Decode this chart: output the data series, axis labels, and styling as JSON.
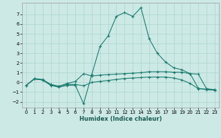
{
  "xlabel": "Humidex (Indice chaleur)",
  "bg_color": "#cce9e5",
  "grid_color": "#aad4cf",
  "line_color": "#1a7a6e",
  "xlim": [
    -0.5,
    23.5
  ],
  "ylim": [
    -2.6,
    8.2
  ],
  "xticks": [
    0,
    1,
    2,
    3,
    4,
    5,
    6,
    7,
    8,
    9,
    10,
    11,
    12,
    13,
    14,
    15,
    16,
    17,
    18,
    19,
    20,
    21,
    22,
    23
  ],
  "yticks": [
    -2,
    -1,
    0,
    1,
    2,
    3,
    4,
    5,
    6,
    7
  ],
  "series": [
    {
      "x": [
        0,
        1,
        2,
        3,
        4,
        5,
        6,
        7,
        8,
        9,
        10,
        11,
        12,
        13,
        14,
        15,
        16,
        17,
        18,
        19,
        20,
        21,
        22,
        23
      ],
      "y": [
        -0.3,
        0.4,
        0.3,
        -0.2,
        -0.4,
        -0.1,
        0.1,
        0.9,
        0.65,
        0.75,
        0.8,
        0.85,
        0.9,
        0.95,
        1.0,
        1.1,
        1.1,
        1.1,
        1.05,
        1.05,
        0.9,
        0.85,
        -0.65,
        -0.75
      ]
    },
    {
      "x": [
        0,
        1,
        2,
        3,
        4,
        5,
        6,
        7,
        8,
        9,
        10,
        11,
        12,
        13,
        14,
        15,
        16,
        17,
        18,
        19,
        20,
        21,
        22,
        23
      ],
      "y": [
        -0.3,
        0.35,
        0.25,
        -0.3,
        -0.4,
        -0.2,
        -0.2,
        -0.35,
        0.0,
        0.1,
        0.2,
        0.3,
        0.4,
        0.45,
        0.5,
        0.55,
        0.55,
        0.55,
        0.45,
        0.25,
        -0.1,
        -0.65,
        -0.7,
        -0.75
      ]
    },
    {
      "x": [
        0,
        1,
        2,
        3,
        4,
        5,
        6,
        7,
        8,
        9,
        10,
        11,
        12,
        13,
        14,
        15,
        16,
        17,
        18,
        19,
        20,
        21,
        22,
        23
      ],
      "y": [
        -0.3,
        0.35,
        0.25,
        -0.3,
        -0.5,
        -0.3,
        -0.3,
        -2.2,
        0.8,
        3.7,
        4.8,
        6.8,
        7.2,
        6.8,
        7.7,
        4.5,
        3.0,
        2.1,
        1.5,
        1.3,
        0.9,
        -0.6,
        -0.75,
        -0.8
      ]
    }
  ]
}
